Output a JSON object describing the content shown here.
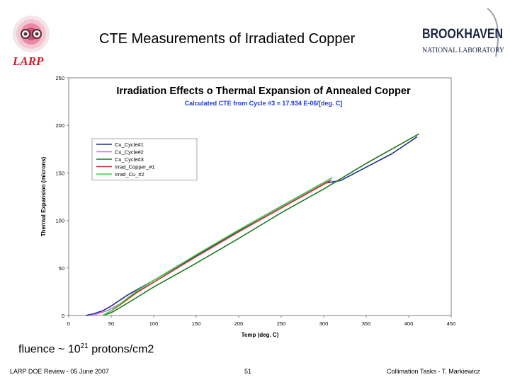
{
  "slide": {
    "title": "CTE Measurements of Irradiated Copper",
    "larp_logo_text": "LARP",
    "bnl_logo_line1": "BROOKHAVEN",
    "bnl_logo_line2": "NATIONAL LABORATORY",
    "fluence_prefix": "fluence ~ 10",
    "fluence_exponent": "21",
    "fluence_suffix": " protons/cm2",
    "footer_left": "LARP DOE Review  -  05 June 2007",
    "footer_center": "51",
    "footer_right": "Collimation Tasks  -  T. Markiewicz"
  },
  "chart_data": {
    "type": "line",
    "title": "Irradiation Effects o Thermal Expansion of Annealed Copper",
    "subtitle": "Calculated CTE from Cycle #3 = 17.934 E-06/[deg. C]",
    "xlabel": "Temp (deg. C)",
    "ylabel": "Thermal Expansion (microns)",
    "xlim": [
      0,
      450
    ],
    "ylim": [
      0,
      250
    ],
    "xticks": [
      0,
      50,
      100,
      150,
      200,
      250,
      300,
      350,
      400,
      450
    ],
    "yticks": [
      0,
      50,
      100,
      150,
      200,
      250
    ],
    "grid": false,
    "legend_position": "upper-left",
    "colors": {
      "plot_border": "#808080",
      "subtitle": "#1f3fd0",
      "larp_red": "#c8202a",
      "bnl_navy": "#1a2340"
    },
    "series": [
      {
        "name": "Cu_Cycle#1",
        "color": "#1f2f8f",
        "x": [
          20,
          30,
          40,
          50,
          70,
          100,
          150,
          200,
          250,
          300,
          320,
          350,
          380,
          410
        ],
        "y": [
          0,
          2,
          5,
          10,
          22,
          37,
          63,
          89,
          115,
          139,
          142,
          156,
          170,
          188
        ]
      },
      {
        "name": "Cu_Cycle#2",
        "color": "#d070d0",
        "x": [
          25,
          35,
          45,
          60,
          80,
          100,
          150,
          200,
          250,
          300,
          310
        ],
        "y": [
          0,
          2,
          5,
          12,
          25,
          35,
          62,
          88,
          114,
          139,
          143
        ]
      },
      {
        "name": "Cu_Cycle#3",
        "color": "#1e7a1e",
        "x": [
          40,
          50,
          60,
          80,
          100,
          150,
          200,
          250,
          300,
          350,
          412
        ],
        "y": [
          0,
          3,
          8,
          19,
          30,
          55,
          81,
          108,
          133,
          160,
          191
        ]
      },
      {
        "name": "Irrad_Copper_#1",
        "color": "#c0392b",
        "x": [
          40,
          50,
          60,
          80,
          100,
          150,
          200,
          250,
          300,
          308
        ],
        "y": [
          0,
          5,
          11,
          24,
          35,
          62,
          88,
          113,
          138,
          142
        ]
      },
      {
        "name": "Irrad_Cu_#2",
        "color": "#3fd43f",
        "x": [
          40,
          50,
          60,
          80,
          100,
          150,
          200,
          250,
          300,
          310
        ],
        "y": [
          0,
          5,
          12,
          26,
          37,
          64,
          90,
          115,
          140,
          145
        ]
      }
    ]
  }
}
